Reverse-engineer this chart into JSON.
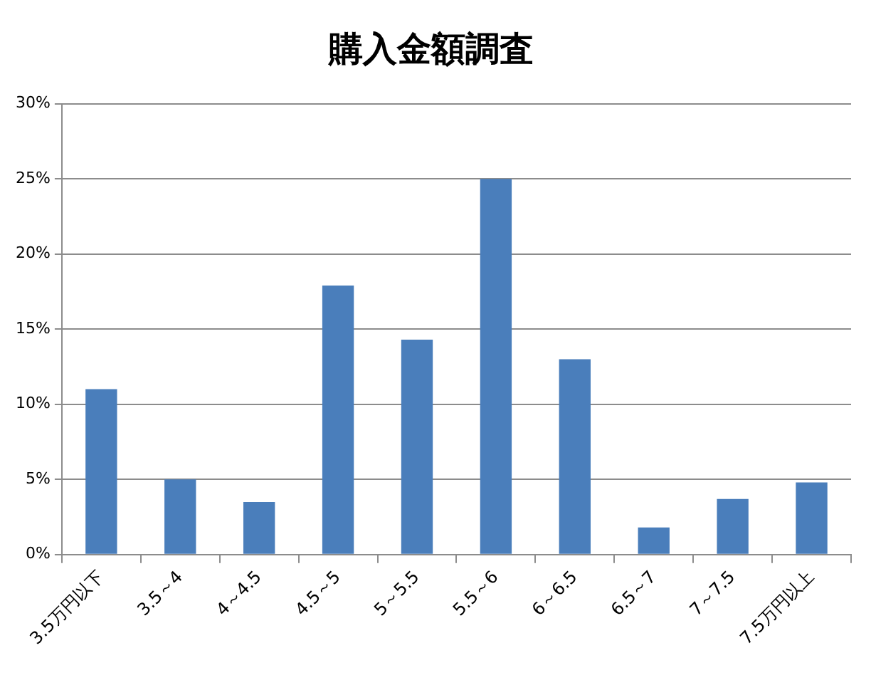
{
  "chart_data": {
    "type": "bar",
    "title": "購入金額調査",
    "categories": [
      "3.5万円以下",
      "3.5～4",
      "4～4.5",
      "4.5～5",
      "5～5.5",
      "5.5～6",
      "6～6.5",
      "6.5～7",
      "7～7.5",
      "7.5万円以上"
    ],
    "values": [
      11.0,
      5.0,
      3.5,
      17.9,
      14.3,
      25.0,
      13.0,
      1.8,
      3.7,
      4.8
    ],
    "color": "#4a7ebb",
    "ylim": [
      0,
      30
    ],
    "yticks": [
      {
        "value": 0,
        "label": "0%"
      },
      {
        "value": 5,
        "label": "5%"
      },
      {
        "value": 10,
        "label": "10%"
      },
      {
        "value": 15,
        "label": "15%"
      },
      {
        "value": 20,
        "label": "20%"
      },
      {
        "value": 25,
        "label": "25%"
      },
      {
        "value": 30,
        "label": "30%"
      }
    ],
    "grid": "y"
  }
}
